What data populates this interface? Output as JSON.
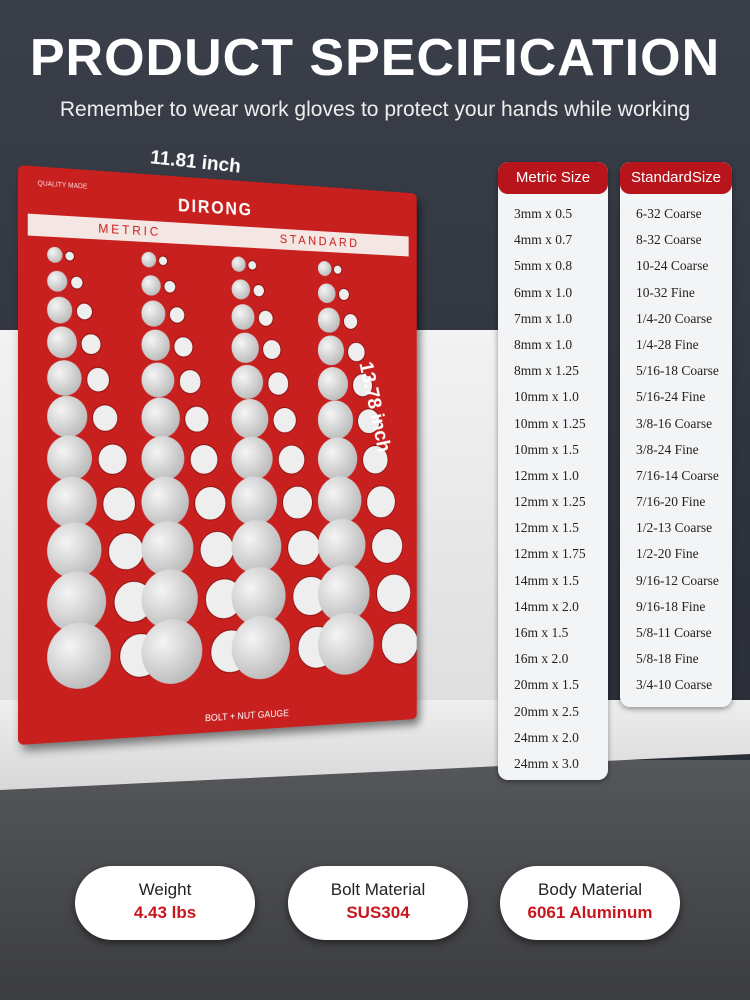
{
  "header": {
    "title": "PRODUCT SPECIFICATION",
    "subtitle": "Remember to wear work gloves to protect your hands while working"
  },
  "dimensions": {
    "width": "11.81 inch",
    "height": "13.78 inch"
  },
  "board": {
    "logo": "DIRONG",
    "quality": "QUALITY MADE",
    "metric_label": "METRIC",
    "standard_label": "STANDARD",
    "footer": "BOLT + NUT GAUGE",
    "color": "#c8201f"
  },
  "metric": {
    "header": "Metric Size",
    "items": [
      "3mm x 0.5",
      "4mm x 0.7",
      "5mm x 0.8",
      "6mm x 1.0",
      "7mm x 1.0",
      "8mm x 1.0",
      "8mm x 1.25",
      "10mm x 1.0",
      "10mm x 1.25",
      "10mm x 1.5",
      "12mm x 1.0",
      "12mm x 1.25",
      "12mm x 1.5",
      "12mm x 1.75",
      "14mm x 1.5",
      "14mm x 2.0",
      "16m x 1.5",
      "16m x 2.0",
      "20mm x 1.5",
      "20mm x 2.5",
      "24mm x 2.0",
      "24mm x 3.0"
    ]
  },
  "standard": {
    "header": "StandardSize",
    "items": [
      "6-32 Coarse",
      "8-32 Coarse",
      "10-24 Coarse",
      "10-32 Fine",
      "1/4-20 Coarse",
      "1/4-28 Fine",
      "5/16-18 Coarse",
      "5/16-24 Fine",
      "3/8-16 Coarse",
      "3/8-24 Fine",
      "7/16-14 Coarse",
      "7/16-20 Fine",
      "1/2-13 Coarse",
      "1/2-20 Fine",
      "9/16-12 Coarse",
      "9/16-18 Fine",
      "5/8-11 Coarse",
      "5/8-18 Fine",
      "3/4-10 Coarse"
    ]
  },
  "specs": [
    {
      "label": "Weight",
      "value": "4.43 lbs"
    },
    {
      "label": "Bolt Material",
      "value": "SUS304"
    },
    {
      "label": "Body Material",
      "value": "6061 Aluminum"
    }
  ],
  "accent": "#b8141b"
}
